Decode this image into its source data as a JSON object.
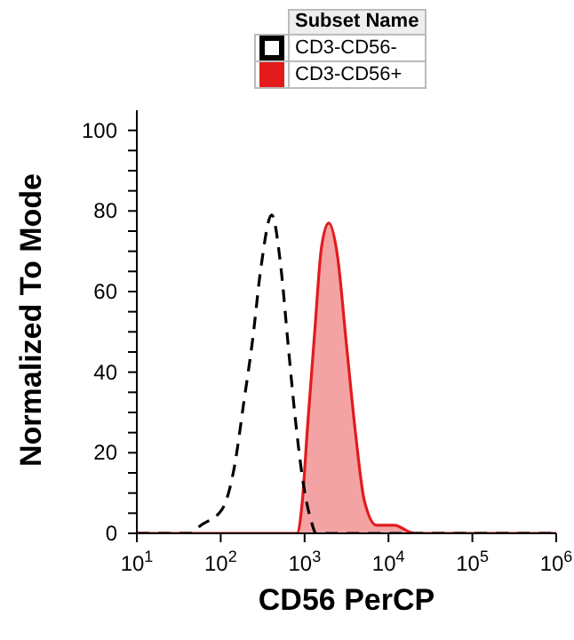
{
  "chart_data": {
    "type": "line",
    "xlabel": "CD56 PerCP",
    "ylabel": "Normalized To Mode",
    "legend_title": "Subset Name",
    "legend": "top",
    "log": "x",
    "grid": false,
    "xlim": [
      10,
      1000000
    ],
    "xticks": [
      {
        "value": 10,
        "label": "10$^{1}$"
      },
      {
        "value": 100,
        "label": "10$^{2}$"
      },
      {
        "value": 1000,
        "label": "10$^{3}$"
      },
      {
        "value": 10000,
        "label": "10$^{4}$"
      },
      {
        "value": 100000,
        "label": "10$^{5}$"
      },
      {
        "value": 1000000,
        "label": "10$^{6}$"
      }
    ],
    "ylim": [
      0,
      105
    ],
    "yticks": [
      0,
      {
        "value": 5,
        "label": null
      },
      {
        "value": 10,
        "label": null
      },
      {
        "value": 15,
        "label": null
      },
      20,
      {
        "value": 25,
        "label": null
      },
      {
        "value": 30,
        "label": null
      },
      {
        "value": 35,
        "label": null
      },
      40,
      {
        "value": 45,
        "label": null
      },
      {
        "value": 50,
        "label": null
      },
      {
        "value": 55,
        "label": null
      },
      60,
      {
        "value": 65,
        "label": null
      },
      {
        "value": 70,
        "label": null
      },
      {
        "value": 75,
        "label": null
      },
      80,
      {
        "value": 85,
        "label": null
      },
      {
        "value": 90,
        "label": null
      },
      {
        "value": 95,
        "label": null
      },
      100
    ],
    "series": [
      {
        "name": "CD3-CD56-",
        "line_style": "dashed",
        "color": "#000000",
        "x": [
          10,
          43,
          58,
          104,
          147,
          187,
          240,
          302,
          405,
          522,
          635,
          770,
          940,
          1200,
          1380,
          1000000
        ],
        "values": [
          0,
          0,
          2,
          6,
          17,
          32,
          48,
          66,
          79,
          66,
          47,
          29,
          14,
          3,
          0,
          0
        ]
      },
      {
        "name": "CD3-CD56+",
        "type": "area",
        "line_style": "solid",
        "color": "#e31a1c",
        "x": [
          10,
          810,
          940,
          1080,
          1320,
          1590,
          1940,
          2460,
          3150,
          4040,
          5170,
          7200,
          11700,
          20300,
          1000000
        ],
        "values": [
          0,
          0,
          8,
          26,
          50,
          71,
          77,
          69,
          47,
          25,
          8,
          2,
          2,
          0,
          0
        ]
      }
    ]
  }
}
